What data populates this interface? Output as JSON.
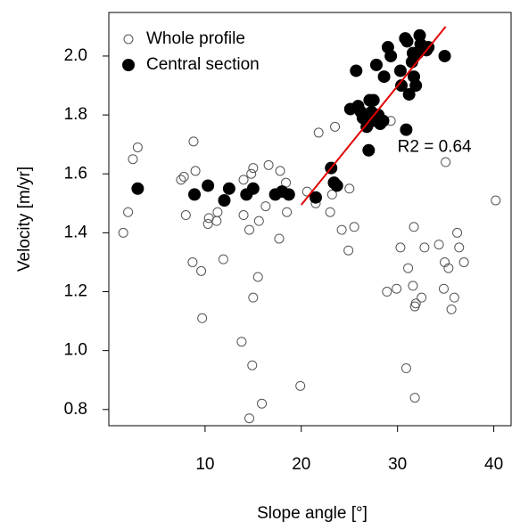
{
  "chart_data": {
    "type": "scatter",
    "x_label": "Slope angle [°]",
    "y_label": "Velocity [m/yr]",
    "xlim": [
      0,
      41.8
    ],
    "ylim": [
      0.745,
      2.148
    ],
    "xticks": [
      10,
      20,
      30,
      40
    ],
    "yticks": [
      0.8,
      {
        "value": 1.0,
        "label": "1.0"
      },
      1.2,
      1.4,
      1.6,
      1.8,
      {
        "value": 2.0,
        "label": "2.0"
      }
    ],
    "legend": "top-left",
    "series": [
      {
        "name": "Whole profile",
        "color": "#555555",
        "marker": "hollow",
        "x": [
          1.5,
          2.0,
          2.5,
          3.0,
          7.5,
          7.8,
          8.0,
          8.7,
          8.8,
          9.0,
          9.6,
          9.7,
          10.3,
          10.4,
          11.2,
          11.3,
          11.9,
          13.8,
          14.0,
          14.0,
          14.6,
          14.6,
          14.8,
          14.9,
          15.0,
          15.0,
          15.5,
          15.6,
          15.9,
          16.3,
          16.6,
          17.7,
          17.8,
          18.4,
          18.5,
          19.9,
          20.6,
          21.5,
          21.8,
          23.0,
          23.2,
          23.5,
          24.2,
          24.9,
          25.0,
          25.5,
          28.9,
          29.3,
          29.9,
          30.3,
          30.9,
          31.1,
          31.6,
          31.7,
          31.8,
          31.8,
          31.9,
          32.5,
          32.8,
          34.3,
          34.8,
          34.9,
          35.0,
          35.3,
          35.6,
          35.9,
          36.2,
          36.4,
          36.9,
          40.2
        ],
        "values": [
          1.4,
          1.47,
          1.65,
          1.69,
          1.58,
          1.59,
          1.46,
          1.3,
          1.71,
          1.61,
          1.27,
          1.11,
          1.43,
          1.45,
          1.44,
          1.47,
          1.31,
          1.03,
          1.46,
          1.58,
          0.77,
          1.41,
          1.6,
          0.95,
          1.18,
          1.62,
          1.25,
          1.44,
          0.82,
          1.49,
          1.63,
          1.38,
          1.61,
          1.57,
          1.47,
          0.88,
          1.54,
          1.5,
          1.74,
          1.47,
          1.53,
          1.76,
          1.41,
          1.34,
          1.55,
          1.42,
          1.2,
          1.78,
          1.21,
          1.35,
          0.94,
          1.28,
          1.22,
          1.42,
          0.84,
          1.15,
          1.16,
          1.18,
          1.35,
          1.36,
          1.21,
          1.3,
          1.64,
          1.28,
          1.14,
          1.18,
          1.4,
          1.35,
          1.3,
          1.51
        ]
      },
      {
        "name": "Central section",
        "color": "#000000",
        "marker": "filled",
        "x": [
          3.0,
          8.9,
          10.3,
          12.0,
          12.5,
          14.3,
          15.0,
          17.3,
          18.0,
          18.7,
          21.5,
          23.1,
          23.4,
          23.7,
          25.1,
          25.7,
          25.9,
          26.2,
          26.4,
          26.8,
          27.0,
          27.1,
          27.3,
          27.4,
          27.5,
          27.8,
          27.9,
          28.0,
          28.2,
          28.5,
          28.6,
          29.0,
          29.3,
          30.3,
          30.4,
          30.8,
          30.9,
          31.0,
          31.2,
          31.5,
          31.6,
          31.7,
          31.9,
          32.1,
          32.3,
          32.4,
          33.0,
          33.2,
          34.9
        ],
        "values": [
          1.55,
          1.53,
          1.56,
          1.51,
          1.55,
          1.53,
          1.55,
          1.53,
          1.54,
          1.53,
          1.52,
          1.62,
          1.57,
          1.56,
          1.82,
          1.95,
          1.83,
          1.81,
          1.79,
          1.76,
          1.68,
          1.85,
          1.81,
          1.78,
          1.85,
          1.97,
          1.8,
          1.8,
          1.77,
          1.78,
          1.93,
          2.03,
          2.0,
          1.95,
          1.9,
          2.06,
          1.75,
          2.05,
          1.87,
          1.98,
          2.01,
          1.93,
          1.9,
          2.01,
          2.07,
          2.04,
          2.02,
          2.03,
          2.0
        ]
      }
    ],
    "fit_line": {
      "color": "#e00000",
      "x": [
        20,
        35
      ],
      "y": [
        1.495,
        2.1
      ]
    },
    "annotation": {
      "text": "R2 =  0.64",
      "x": 30,
      "y": 1.69
    }
  }
}
